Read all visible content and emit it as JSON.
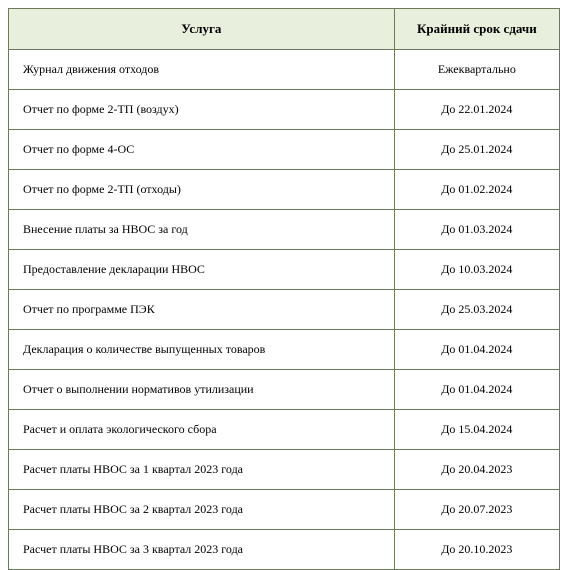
{
  "table": {
    "header_bg": "#e8f0dd",
    "border_color": "#6b7a5a",
    "text_color": "#000000",
    "font_family": "Georgia, 'Times New Roman', serif",
    "header_fontsize": 13,
    "cell_fontsize": 12,
    "columns": [
      {
        "key": "service",
        "label": "Услуга",
        "width": "70%",
        "align": "left"
      },
      {
        "key": "deadline",
        "label": "Крайний срок сдачи",
        "width": "30%",
        "align": "center"
      }
    ],
    "rows": [
      {
        "service": "Журнал движения отходов",
        "deadline": "Ежеквартально"
      },
      {
        "service": "Отчет по форме 2-ТП (воздух)",
        "deadline": "До 22.01.2024"
      },
      {
        "service": "Отчет по форме 4-ОС",
        "deadline": "До 25.01.2024"
      },
      {
        "service": "Отчет по форме 2-ТП (отходы)",
        "deadline": "До 01.02.2024"
      },
      {
        "service": "Внесение платы за НВОС за год",
        "deadline": "До 01.03.2024"
      },
      {
        "service": "Предоставление декларации НВОС",
        "deadline": "До 10.03.2024"
      },
      {
        "service": "Отчет по программе ПЭК",
        "deadline": "До 25.03.2024"
      },
      {
        "service": "Декларация о количестве выпущенных товаров",
        "deadline": "До 01.04.2024"
      },
      {
        "service": "Отчет о выполнении нормативов утилизации",
        "deadline": "До 01.04.2024"
      },
      {
        "service": "Расчет и оплата экологического сбора",
        "deadline": "До 15.04.2024"
      },
      {
        "service": "Расчет платы НВОС за 1 квартал 2023 года",
        "deadline": "До 20.04.2023"
      },
      {
        "service": "Расчет платы НВОС за 2 квартал 2023 года",
        "deadline": "До 20.07.2023"
      },
      {
        "service": "Расчет платы НВОС за 3 квартал 2023 года",
        "deadline": "До 20.10.2023"
      }
    ]
  }
}
